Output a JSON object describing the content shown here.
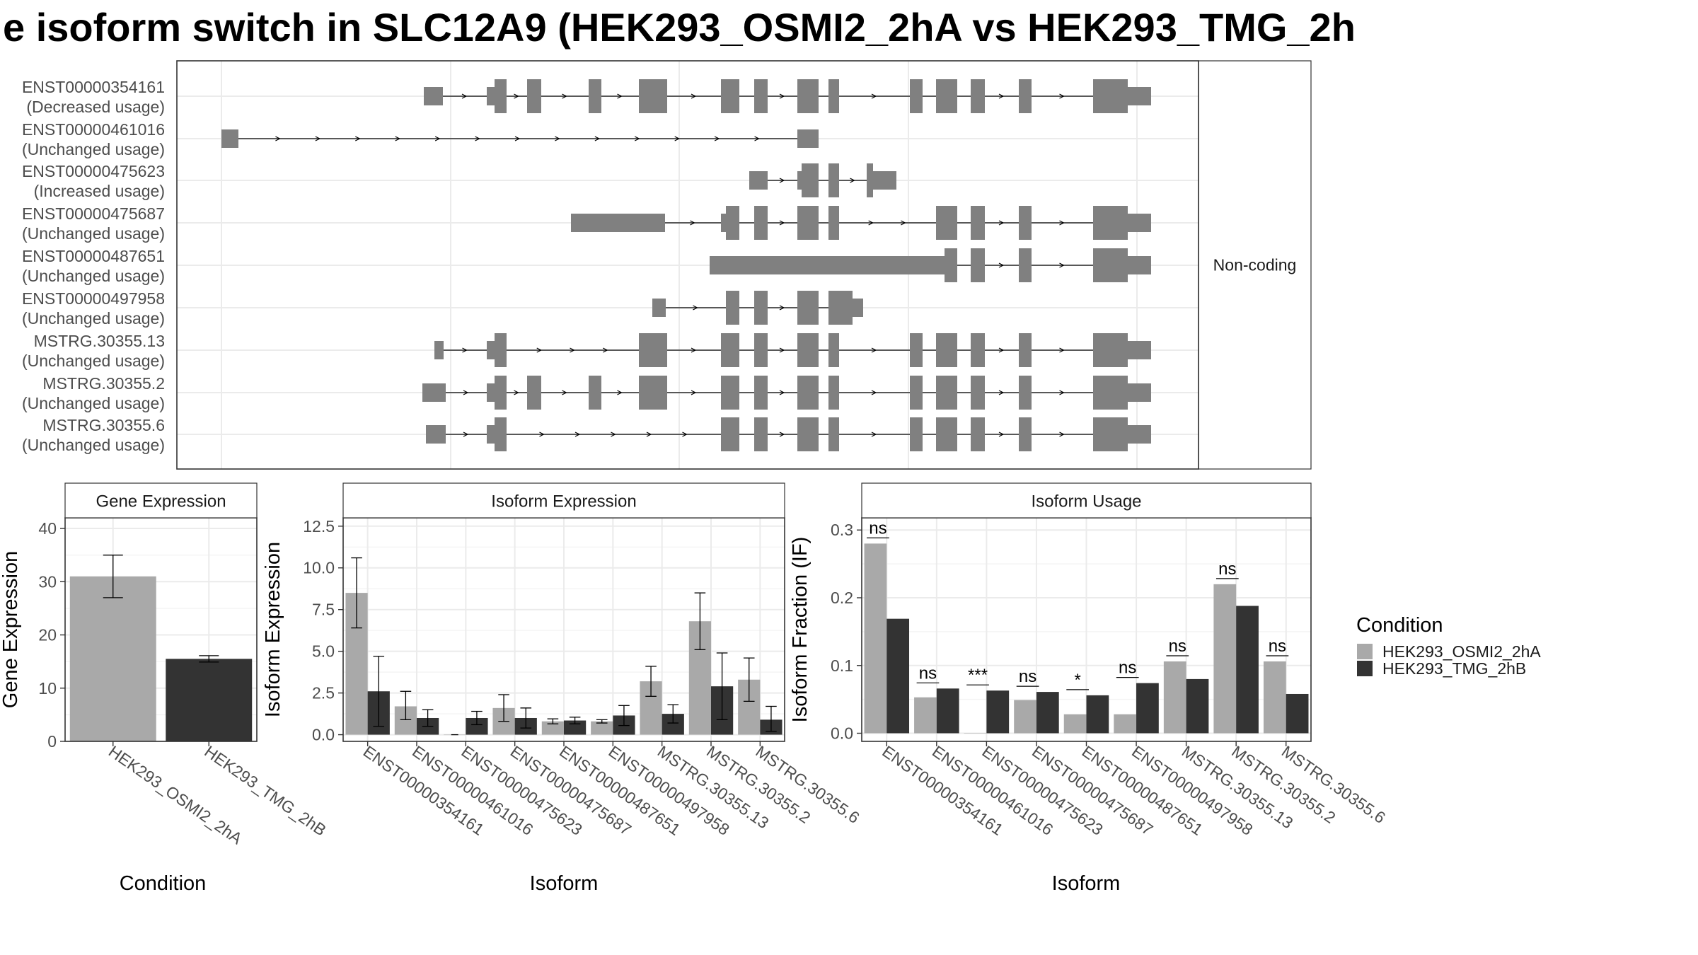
{
  "title": "e isoform switch in SLC12A9 (HEK293_OSMI2_2hA vs HEK293_TMG_2h",
  "colors": {
    "a": "#a9a9a9",
    "b": "#333333",
    "exon": "#808080"
  },
  "structure": {
    "strip_label": "Non-coding",
    "isoforms": [
      {
        "id": "ENST00000354161",
        "usage": "(Decreased usage)"
      },
      {
        "id": "ENST00000461016",
        "usage": "(Unchanged usage)"
      },
      {
        "id": "ENST00000475623",
        "usage": "(Increased usage)"
      },
      {
        "id": "ENST00000475687",
        "usage": "(Unchanged usage)"
      },
      {
        "id": "ENST00000487651",
        "usage": "(Unchanged usage)"
      },
      {
        "id": "ENST00000497958",
        "usage": "(Unchanged usage)"
      },
      {
        "id": "MSTRG.30355.13",
        "usage": "(Unchanged usage)"
      },
      {
        "id": "MSTRG.30355.2",
        "usage": "(Unchanged usage)"
      },
      {
        "id": "MSTRG.30355.6",
        "usage": "(Unchanged usage)"
      }
    ]
  },
  "legend": {
    "title": "Condition",
    "items": [
      "HEK293_OSMI2_2hA",
      "HEK293_TMG_2hB"
    ]
  },
  "chart_data": [
    {
      "type": "bar",
      "strip": "Gene Expression",
      "xlabel": "Condition",
      "ylabel": "Gene Expression",
      "ylim": [
        0,
        42
      ],
      "yticks": [
        0,
        10,
        20,
        30,
        40
      ],
      "categories": [
        "HEK293_OSMI2_2hA",
        "HEK293_TMG_2hB"
      ],
      "values": [
        31.0,
        15.5
      ],
      "err_low": [
        27.0,
        14.9
      ],
      "err_high": [
        35.0,
        16.1
      ]
    },
    {
      "type": "bar",
      "strip": "Isoform Expression",
      "xlabel": "Isoform",
      "ylabel": "Isoform Expression",
      "ylim": [
        -0.4,
        13.0
      ],
      "yticks": [
        "0.0",
        "2.5",
        "5.0",
        "7.5",
        "10.0",
        "12.5"
      ],
      "categories": [
        "ENST00000354161",
        "ENST00000461016",
        "ENST00000475623",
        "ENST00000475687",
        "ENST00000487651",
        "ENST00000497958",
        "MSTRG.30355.13",
        "MSTRG.30355.2",
        "MSTRG.30355.6"
      ],
      "series": [
        {
          "name": "HEK293_OSMI2_2hA",
          "values": [
            8.5,
            1.7,
            0.0,
            1.6,
            0.8,
            0.8,
            3.2,
            6.8,
            3.3
          ],
          "err_low": [
            6.4,
            0.9,
            0.0,
            0.8,
            0.65,
            0.7,
            2.3,
            5.1,
            2.0
          ],
          "err_high": [
            10.6,
            2.6,
            0.0,
            2.4,
            0.95,
            0.9,
            4.1,
            8.5,
            4.6
          ]
        },
        {
          "name": "HEK293_TMG_2hB",
          "values": [
            2.6,
            1.0,
            1.0,
            1.0,
            0.85,
            1.15,
            1.25,
            2.9,
            0.9
          ],
          "err_low": [
            0.5,
            0.5,
            0.6,
            0.4,
            0.65,
            0.55,
            0.7,
            0.9,
            0.2
          ],
          "err_high": [
            4.7,
            1.5,
            1.4,
            1.6,
            1.05,
            1.75,
            1.8,
            4.9,
            1.7
          ]
        }
      ]
    },
    {
      "type": "bar",
      "strip": "Isoform Usage",
      "xlabel": "Isoform",
      "ylabel": "Isoform Fraction (IF)",
      "ylim": [
        -0.012,
        0.318
      ],
      "yticks": [
        "0.0",
        "0.1",
        "0.2",
        "0.3"
      ],
      "categories": [
        "ENST00000354161",
        "ENST00000461016",
        "ENST00000475623",
        "ENST00000475687",
        "ENST00000487651",
        "ENST00000497958",
        "MSTRG.30355.13",
        "MSTRG.30355.2",
        "MSTRG.30355.6"
      ],
      "series": [
        {
          "name": "HEK293_OSMI2_2hA",
          "values": [
            0.28,
            0.053,
            0.0,
            0.049,
            0.028,
            0.028,
            0.106,
            0.22,
            0.106
          ]
        },
        {
          "name": "HEK293_TMG_2hB",
          "values": [
            0.169,
            0.066,
            0.063,
            0.061,
            0.056,
            0.074,
            0.08,
            0.188,
            0.058
          ]
        }
      ],
      "significance": [
        "ns",
        "ns",
        "***",
        "ns",
        "*",
        "ns",
        "ns",
        "ns",
        "ns"
      ]
    }
  ]
}
